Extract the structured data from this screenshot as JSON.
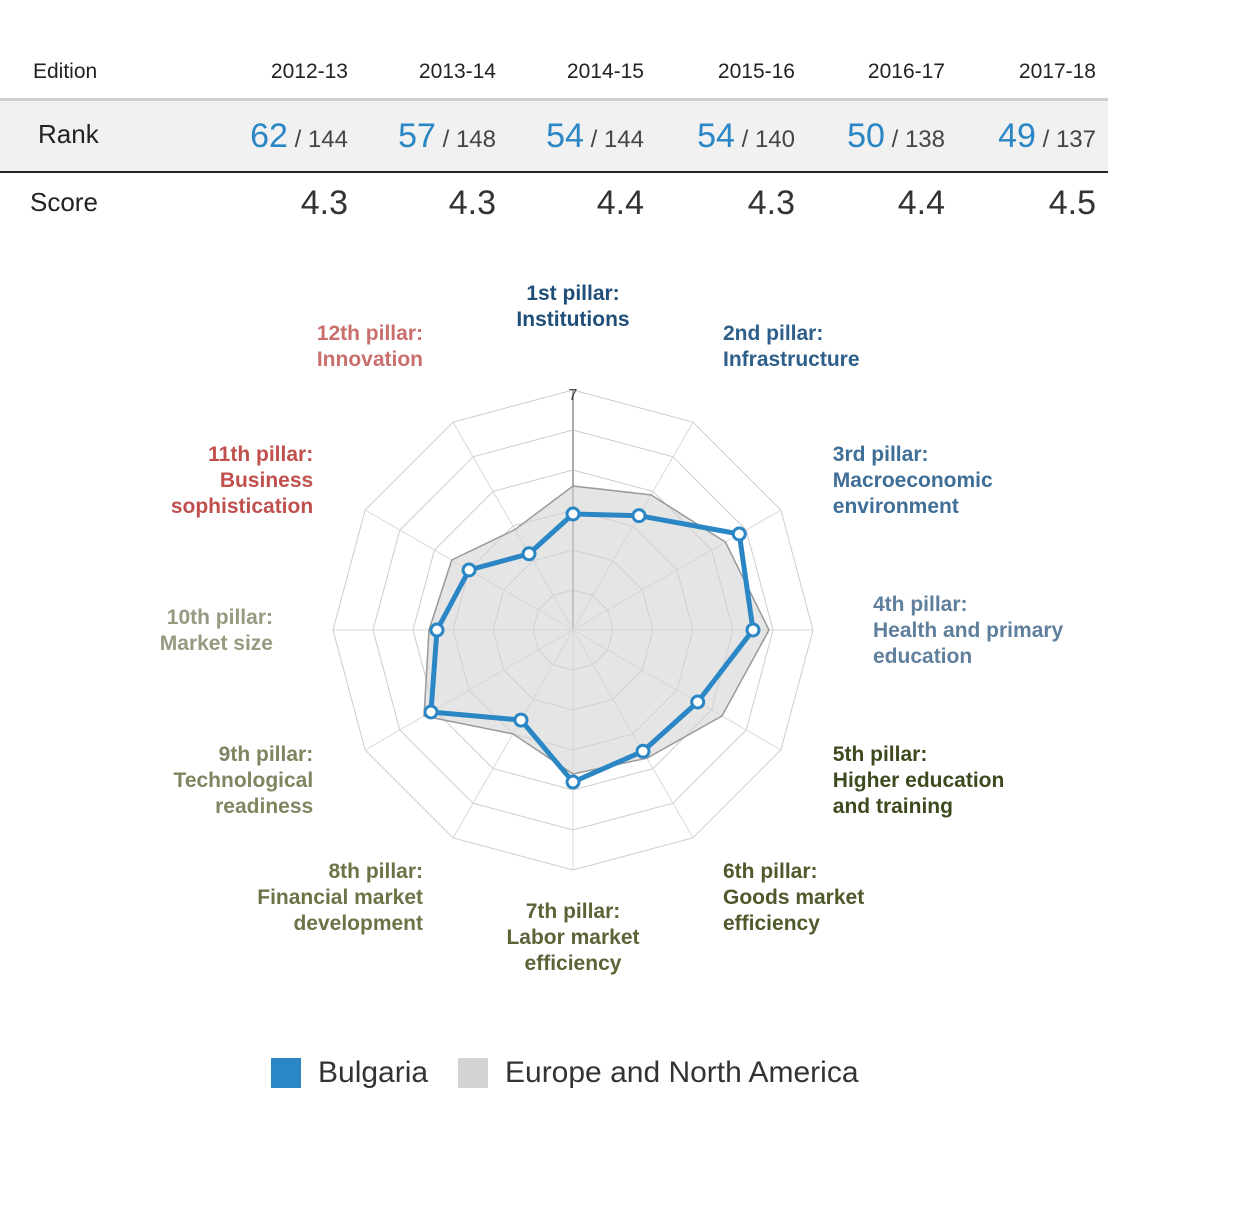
{
  "table": {
    "edition_label": "Edition",
    "rank_label": "Rank",
    "score_label": "Score",
    "columns": [
      {
        "edition": "2012-13",
        "rank": "62",
        "of": " / 144",
        "score": "4.3"
      },
      {
        "edition": "2013-14",
        "rank": "57",
        "of": " / 148",
        "score": "4.3"
      },
      {
        "edition": "2014-15",
        "rank": "54",
        "of": " / 144",
        "score": "4.4"
      },
      {
        "edition": "2015-16",
        "rank": "54",
        "of": " / 140",
        "score": "4.3"
      },
      {
        "edition": "2016-17",
        "rank": "50",
        "of": " / 138",
        "score": "4.4"
      },
      {
        "edition": "2017-18",
        "rank": "49",
        "of": " / 137",
        "score": "4.5"
      }
    ]
  },
  "chart_data": {
    "type": "radar",
    "axis_max_label": "7",
    "range": [
      1,
      7
    ],
    "grid_rings": 6,
    "categories": [
      {
        "lines": [
          "1st pillar:",
          "Institutions"
        ],
        "color": "#1f4e79"
      },
      {
        "lines": [
          "2nd pillar:",
          "Infrastructure"
        ],
        "color": "#2e5f8a"
      },
      {
        "lines": [
          "3rd pillar:",
          "Macroeconomic",
          "environment"
        ],
        "color": "#3f6e96"
      },
      {
        "lines": [
          "4th pillar:",
          "Health and primary",
          "education"
        ],
        "color": "#5f7f9c"
      },
      {
        "lines": [
          "5th pillar:",
          "Higher education",
          "and training"
        ],
        "color": "#3d4a1f"
      },
      {
        "lines": [
          "6th pillar:",
          "Goods market",
          "efficiency"
        ],
        "color": "#4f5a2c"
      },
      {
        "lines": [
          "7th pillar:",
          "Labor market",
          "efficiency"
        ],
        "color": "#5a6436"
      },
      {
        "lines": [
          "8th pillar:",
          "Financial market",
          "development"
        ],
        "color": "#6b7447"
      },
      {
        "lines": [
          "9th pillar:",
          "Technological",
          "readiness"
        ],
        "color": "#7d8660"
      },
      {
        "lines": [
          "10th pillar:",
          "Market size"
        ],
        "color": "#959b80"
      },
      {
        "lines": [
          "11th pillar:",
          "Business",
          "sophistication"
        ],
        "color": "#c0504d"
      },
      {
        "lines": [
          "12th pillar:",
          "Innovation"
        ],
        "color": "#c96f6d"
      }
    ],
    "series": [
      {
        "name": "Bulgaria",
        "color": "#2a86c4",
        "values": [
          3.9,
          4.3,
          5.8,
          5.5,
          4.6,
          4.5,
          4.8,
          3.6,
          5.1,
          4.4,
          4.0,
          3.2
        ]
      },
      {
        "name": "Europe and North America",
        "color": "#d3d3d3",
        "values": [
          4.6,
          4.9,
          5.4,
          5.9,
          5.3,
          4.7,
          4.6,
          4.0,
          5.3,
          4.6,
          4.5,
          3.9
        ]
      }
    ]
  }
}
